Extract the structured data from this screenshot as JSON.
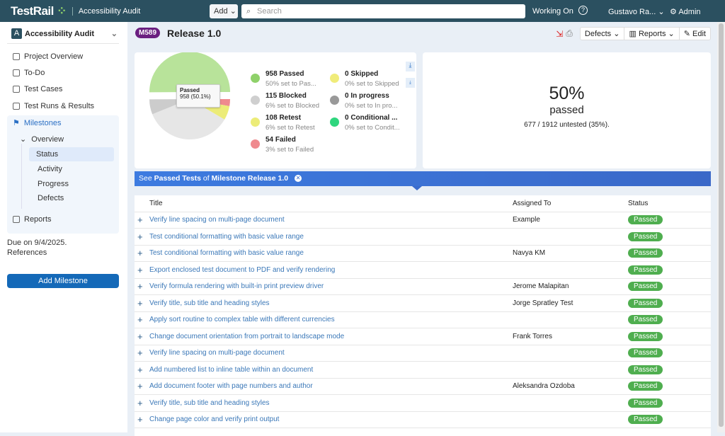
{
  "topbar": {
    "logo": "TestRail",
    "project": "Accessibility Audit",
    "add": "Add",
    "search_placeholder": "Search",
    "working_on": "Working On",
    "help": "?",
    "user": "Gustavo Ra...",
    "admin": "Admin"
  },
  "sidebar": {
    "project": "Accessibility Audit",
    "project_initial": "A",
    "items": [
      {
        "label": "Project Overview"
      },
      {
        "label": "To-Do"
      },
      {
        "label": "Test Cases"
      },
      {
        "label": "Test Runs & Results"
      },
      {
        "label": "Milestones"
      },
      {
        "label": "Reports"
      }
    ],
    "overview": "Overview",
    "subitems": [
      "Status",
      "Activity",
      "Progress",
      "Defects"
    ],
    "due": "Due on 9/4/2025.",
    "references": "References",
    "add_milestone": "Add Milestone"
  },
  "header": {
    "badge": "M589",
    "title": "Release 1.0",
    "defects": "Defects",
    "reports": "Reports",
    "edit": "Edit"
  },
  "chart_data": {
    "type": "pie",
    "slices": [
      {
        "name": "Passed",
        "value": 958,
        "color": "#b8e39a"
      },
      {
        "name": "Failed",
        "value": 54,
        "color": "#ef8a8e"
      },
      {
        "name": "Retest",
        "value": 108,
        "color": "#ecec78"
      },
      {
        "name": "Untested",
        "value": 677,
        "color": "#e6e6e6"
      },
      {
        "name": "Blocked",
        "value": 115,
        "color": "#cccccc"
      }
    ],
    "tooltip": {
      "title": "Passed",
      "value": "958 (50.1%)"
    }
  },
  "legend": [
    {
      "title": "958 Passed",
      "sub": "50% set to Pas...",
      "color": "#8fd16a"
    },
    {
      "title": "115 Blocked",
      "sub": "6% set to Blocked",
      "color": "#cfcfcf"
    },
    {
      "title": "108 Retest",
      "sub": "6% set to Retest",
      "color": "#ecec78"
    },
    {
      "title": "54 Failed",
      "sub": "3% set to Failed",
      "color": "#ef8a8e"
    },
    {
      "title": "0 Skipped",
      "sub": "0% set to Skipped",
      "color": "#f0ec7a"
    },
    {
      "title": "0 In progress",
      "sub": "0% set to In pro...",
      "color": "#999999"
    },
    {
      "title": "0 Conditional ...",
      "sub": "0% set to Condit...",
      "color": "#2fd67e"
    }
  ],
  "summary": {
    "percent": "50%",
    "label": "passed",
    "untested": "677 / 1912 untested (35%)."
  },
  "banner": {
    "see": "See",
    "passed_tests": "Passed Tests",
    "of": "of",
    "milestone": "Milestone Release 1.0"
  },
  "table": {
    "headers": [
      "Title",
      "Assigned To",
      "Status"
    ],
    "rows": [
      {
        "title": "Verify line spacing on multi-page document",
        "assigned": "Example",
        "status": "Passed"
      },
      {
        "title": "Test conditional formatting with basic value range",
        "assigned": "",
        "status": "Passed"
      },
      {
        "title": "Test conditional formatting with basic value range",
        "assigned": "Navya KM",
        "status": "Passed"
      },
      {
        "title": "Export enclosed test document to PDF and verify rendering",
        "assigned": "",
        "status": "Passed"
      },
      {
        "title": "Verify formula rendering with built-in print preview driver",
        "assigned": "Jerome Malapitan",
        "status": "Passed"
      },
      {
        "title": "Verify title, sub title and heading styles",
        "assigned": "Jorge Spratley Test",
        "status": "Passed"
      },
      {
        "title": "Apply sort routine to complex table with different currencies",
        "assigned": "",
        "status": "Passed"
      },
      {
        "title": "Change document orientation from portrait to landscape mode",
        "assigned": "Frank Torres",
        "status": "Passed"
      },
      {
        "title": "Verify line spacing on multi-page document",
        "assigned": "",
        "status": "Passed"
      },
      {
        "title": "Add numbered list to inline table within an document",
        "assigned": "",
        "status": "Passed"
      },
      {
        "title": "Add document footer with page numbers and author",
        "assigned": "Aleksandra Ozdoba",
        "status": "Passed"
      },
      {
        "title": "Verify title, sub title and heading styles",
        "assigned": "",
        "status": "Passed"
      },
      {
        "title": "Change page color and verify print output",
        "assigned": "",
        "status": "Passed"
      }
    ]
  }
}
